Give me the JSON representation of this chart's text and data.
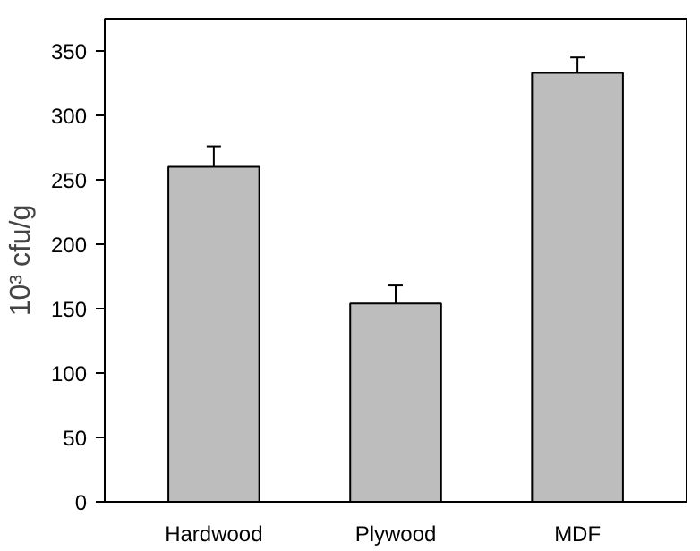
{
  "chart_data": {
    "type": "bar",
    "ylabel": "10³ cfu/g",
    "categories": [
      "Hardwood",
      "Plywood",
      "MDF"
    ],
    "values": [
      260,
      154,
      333
    ],
    "errors": [
      16,
      14,
      12
    ],
    "color": "#bdbdbd",
    "ylim": [
      0,
      375
    ],
    "yticks": [
      0,
      50,
      100,
      150,
      200,
      250,
      300,
      350
    ],
    "grid": false
  }
}
